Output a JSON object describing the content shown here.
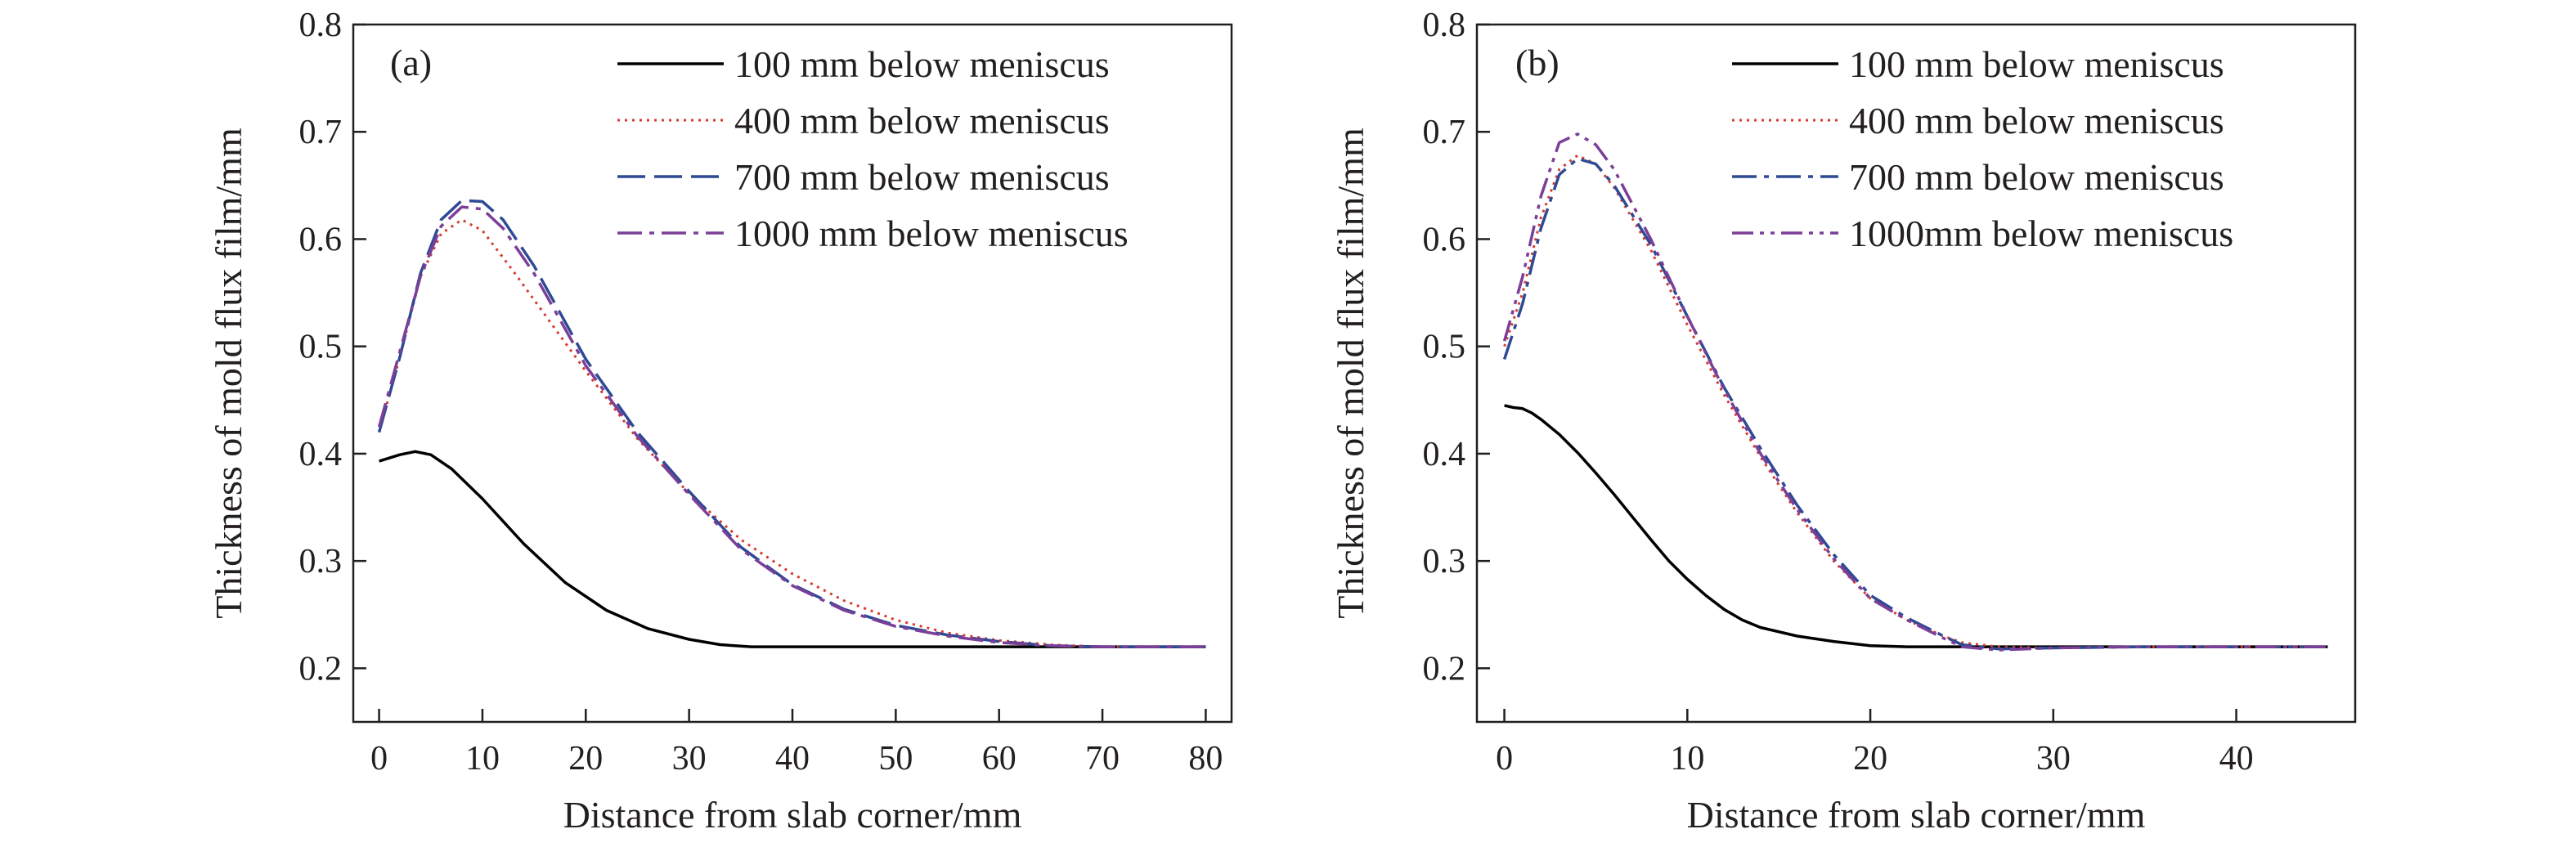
{
  "chart_data": [
    {
      "type": "line",
      "panel_label": "(a)",
      "xlabel": "Distance from slab corner/mm",
      "ylabel": "Thickness of mold flux film/mm",
      "xlim": [
        -2.5,
        82.5
      ],
      "ylim": [
        0.15,
        0.8
      ],
      "xticks": [
        0,
        10,
        20,
        30,
        40,
        50,
        60,
        70,
        80
      ],
      "yticks": [
        0.2,
        0.3,
        0.4,
        0.5,
        0.6,
        0.7,
        0.8
      ],
      "xtick_labels": [
        "0",
        "10",
        "20",
        "30",
        "40",
        "50",
        "60",
        "70",
        "80"
      ],
      "ytick_labels": [
        "0.2",
        "0.3",
        "0.4",
        "0.5",
        "0.6",
        "0.7",
        "0.8"
      ],
      "grid": false,
      "legend_position": "top-right",
      "series": [
        {
          "name": "100 mm below meniscus",
          "color": "#000000",
          "dash": "solid",
          "x": [
            0,
            2,
            3.5,
            5,
            7,
            10,
            14,
            18,
            22,
            26,
            30,
            33,
            36,
            40,
            50,
            60,
            70,
            80
          ],
          "y": [
            0.393,
            0.399,
            0.402,
            0.399,
            0.386,
            0.358,
            0.316,
            0.28,
            0.254,
            0.237,
            0.227,
            0.222,
            0.22,
            0.22,
            0.22,
            0.22,
            0.22,
            0.22
          ]
        },
        {
          "name": "400 mm below meniscus",
          "color": "#d63a2e",
          "dash": "dotted",
          "x": [
            0,
            2,
            4,
            6,
            8,
            10,
            13,
            16,
            20,
            25,
            30,
            35,
            40,
            45,
            50,
            55,
            60,
            65,
            70,
            80
          ],
          "y": [
            0.42,
            0.49,
            0.565,
            0.605,
            0.618,
            0.608,
            0.57,
            0.53,
            0.477,
            0.414,
            0.363,
            0.32,
            0.288,
            0.263,
            0.245,
            0.233,
            0.226,
            0.222,
            0.22,
            0.22
          ]
        },
        {
          "name": "700 mm below meniscus",
          "color": "#2e4a94",
          "dash": "long-dash",
          "x": [
            0,
            2,
            4,
            6,
            8,
            10,
            12,
            15,
            20,
            25,
            30,
            35,
            40,
            45,
            50,
            55,
            60,
            65,
            70,
            80
          ],
          "y": [
            0.42,
            0.49,
            0.568,
            0.618,
            0.636,
            0.635,
            0.618,
            0.575,
            0.488,
            0.42,
            0.365,
            0.313,
            0.278,
            0.255,
            0.24,
            0.231,
            0.225,
            0.221,
            0.22,
            0.22
          ]
        },
        {
          "name": "1000 mm below meniscus",
          "color": "#7b3f98",
          "dash": "dash-dot",
          "x": [
            0,
            2,
            4,
            6,
            8,
            10,
            12,
            15,
            20,
            25,
            30,
            35,
            40,
            45,
            50,
            55,
            60,
            65,
            70,
            80
          ],
          "y": [
            0.425,
            0.495,
            0.565,
            0.612,
            0.63,
            0.628,
            0.61,
            0.568,
            0.482,
            0.416,
            0.362,
            0.311,
            0.277,
            0.254,
            0.239,
            0.23,
            0.224,
            0.221,
            0.22,
            0.22
          ]
        }
      ]
    },
    {
      "type": "line",
      "panel_label": "(b)",
      "xlabel": "Distance from slab corner/mm",
      "ylabel": "Thickness of mold flux film/mm",
      "xlim": [
        -1.5,
        46.5
      ],
      "ylim": [
        0.15,
        0.8
      ],
      "xticks": [
        0,
        10,
        20,
        30,
        40
      ],
      "yticks": [
        0.2,
        0.3,
        0.4,
        0.5,
        0.6,
        0.7,
        0.8
      ],
      "xtick_labels": [
        "0",
        "10",
        "20",
        "30",
        "40"
      ],
      "ytick_labels": [
        "0.2",
        "0.3",
        "0.4",
        "0.5",
        "0.6",
        "0.7",
        "0.8"
      ],
      "grid": false,
      "legend_position": "top-right",
      "series": [
        {
          "name": "100 mm below meniscus",
          "color": "#000000",
          "dash": "solid",
          "x": [
            0,
            0.5,
            1,
            1.5,
            2,
            3,
            4,
            5,
            6,
            7,
            8,
            9,
            10,
            11,
            12,
            13,
            14,
            16,
            18,
            20,
            22,
            25,
            30,
            35,
            40,
            45
          ],
          "y": [
            0.445,
            0.443,
            0.442,
            0.438,
            0.432,
            0.418,
            0.401,
            0.382,
            0.362,
            0.341,
            0.32,
            0.3,
            0.283,
            0.268,
            0.255,
            0.245,
            0.238,
            0.23,
            0.225,
            0.221,
            0.22,
            0.22,
            0.22,
            0.22,
            0.22,
            0.22
          ]
        },
        {
          "name": "400 mm below meniscus",
          "color": "#d63a2e",
          "dash": "dotted",
          "x": [
            0,
            1,
            2,
            3,
            4,
            5,
            6,
            8,
            10,
            12,
            14,
            16,
            18,
            20,
            22,
            24,
            25,
            27,
            30,
            35,
            40,
            45
          ],
          "y": [
            0.5,
            0.55,
            0.62,
            0.665,
            0.678,
            0.67,
            0.648,
            0.59,
            0.52,
            0.455,
            0.397,
            0.345,
            0.3,
            0.265,
            0.245,
            0.23,
            0.224,
            0.22,
            0.219,
            0.22,
            0.22,
            0.22
          ]
        },
        {
          "name": "700 mm below meniscus",
          "color": "#2e4a94",
          "dash": "dash-dot",
          "x": [
            0,
            1,
            2,
            3,
            4,
            5,
            6,
            8,
            10,
            12,
            14,
            16,
            18,
            20,
            22,
            24,
            25,
            27,
            30,
            35,
            40,
            45
          ],
          "y": [
            0.488,
            0.54,
            0.61,
            0.66,
            0.675,
            0.67,
            0.65,
            0.595,
            0.528,
            0.462,
            0.405,
            0.352,
            0.306,
            0.268,
            0.247,
            0.23,
            0.222,
            0.218,
            0.219,
            0.22,
            0.22,
            0.22
          ]
        },
        {
          "name": "1000mm below meniscus",
          "color": "#7b3f98",
          "dash": "dash-dot-dot",
          "x": [
            0,
            1,
            2,
            3,
            4,
            5,
            6,
            8,
            10,
            12,
            14,
            16,
            18,
            20,
            22,
            24,
            25,
            27,
            30,
            35,
            40,
            45
          ],
          "y": [
            0.505,
            0.565,
            0.64,
            0.69,
            0.698,
            0.688,
            0.665,
            0.6,
            0.528,
            0.46,
            0.4,
            0.348,
            0.302,
            0.265,
            0.245,
            0.228,
            0.22,
            0.217,
            0.219,
            0.22,
            0.22,
            0.22
          ]
        }
      ]
    }
  ]
}
